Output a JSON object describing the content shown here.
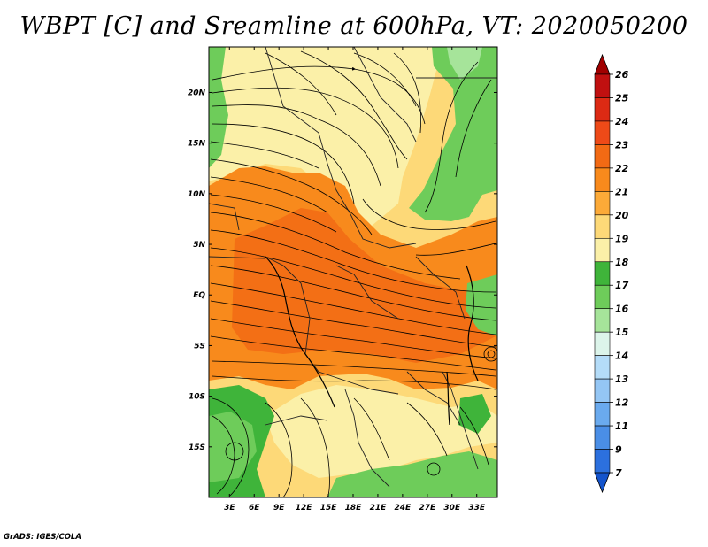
{
  "chart_data": {
    "type": "heatmap",
    "title": "WBPT [C] and Sreamline at 600hPa, VT: 2020050200",
    "variable": "WBPT [C]",
    "level": "600hPa",
    "valid_time": "2020050200",
    "x_ticks": [
      "3E",
      "6E",
      "9E",
      "12E",
      "15E",
      "18E",
      "21E",
      "24E",
      "27E",
      "30E",
      "33E"
    ],
    "x_values": [
      3,
      6,
      9,
      12,
      15,
      18,
      21,
      24,
      27,
      30,
      33
    ],
    "y_ticks": [
      "20N",
      "15N",
      "10N",
      "5N",
      "EQ",
      "5S",
      "10S",
      "15S"
    ],
    "y_values": [
      20,
      15,
      10,
      5,
      0,
      -5,
      -10,
      -15
    ],
    "xlim": [
      0.5,
      35.5
    ],
    "ylim": [
      -20,
      24.5
    ],
    "colorbar": {
      "levels": [
        "26",
        "25",
        "24",
        "23",
        "22",
        "21",
        "20",
        "19",
        "18",
        "17",
        "16",
        "15",
        "14",
        "13",
        "12",
        "11",
        "9",
        "7"
      ],
      "colors": [
        "#a00000",
        "#c01010",
        "#dc2a14",
        "#ee4a18",
        "#f26a14",
        "#f88a1c",
        "#fcaa38",
        "#fdd978",
        "#fbf0a8",
        "#3fb43a",
        "#6ecc5a",
        "#a6e49a",
        "#dcf4ea",
        "#b4dcf8",
        "#94c6f4",
        "#6aaaee",
        "#4a8ee6",
        "#2c70de",
        "#1454cc"
      ]
    },
    "fields": [
      {
        "name": "green-band-northeast",
        "color": "#6ecc5a"
      },
      {
        "name": "cool-zone-north",
        "color": "#fbf0a8"
      },
      {
        "name": "warm-core-equatorial",
        "color": "#f88a1c"
      },
      {
        "name": "cool-zone-south",
        "color": "#fbf0a8"
      },
      {
        "name": "green-zone-southwest",
        "color": "#3fb43a"
      }
    ]
  },
  "footer": {
    "credit": "GrADS: IGES/COLA"
  }
}
